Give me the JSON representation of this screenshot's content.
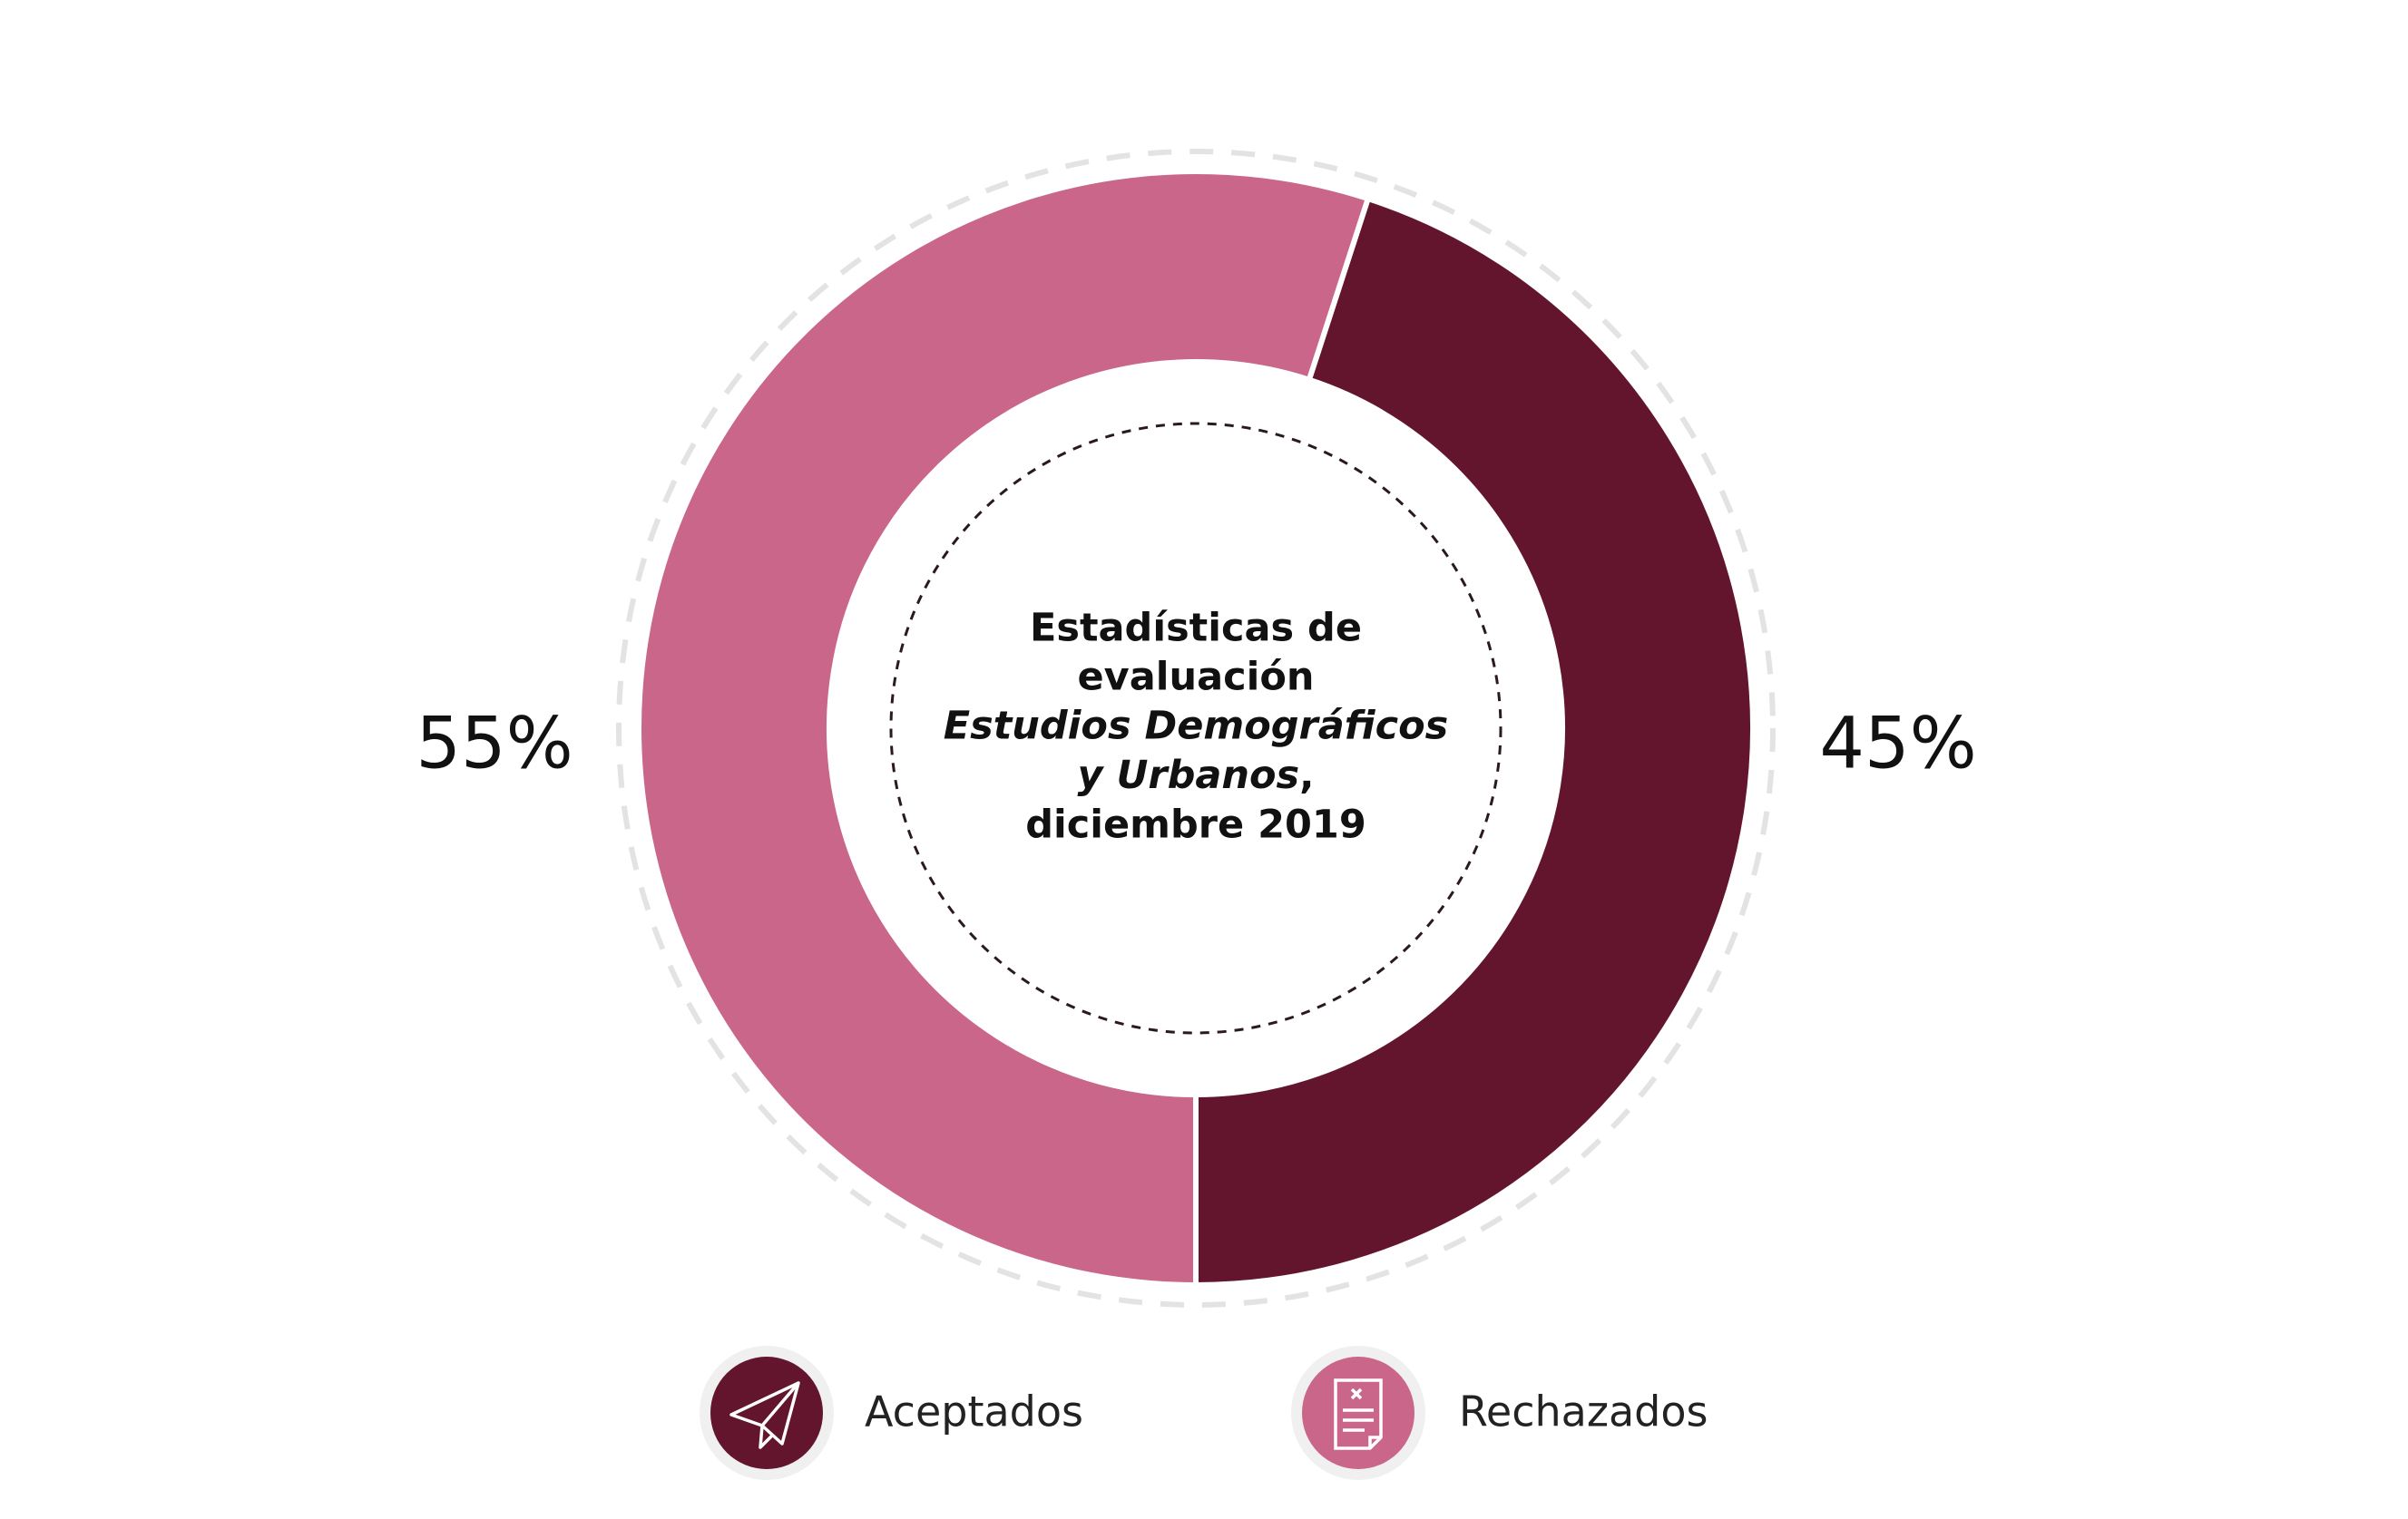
{
  "chart_data": {
    "type": "donut",
    "title": [
      "Estadísticas de",
      "evaluación"
    ],
    "subtitle": [
      "Estudios Demográficos",
      "y Urbanos"
    ],
    "subtitle_punctuation": ",",
    "date": "diciembre 2019",
    "categories": [
      "Aceptados",
      "Rechazados"
    ],
    "values": [
      45,
      55
    ],
    "value_labels": [
      "45%",
      "55%"
    ],
    "colors": [
      "#63152e",
      "#c9668a"
    ]
  }
}
